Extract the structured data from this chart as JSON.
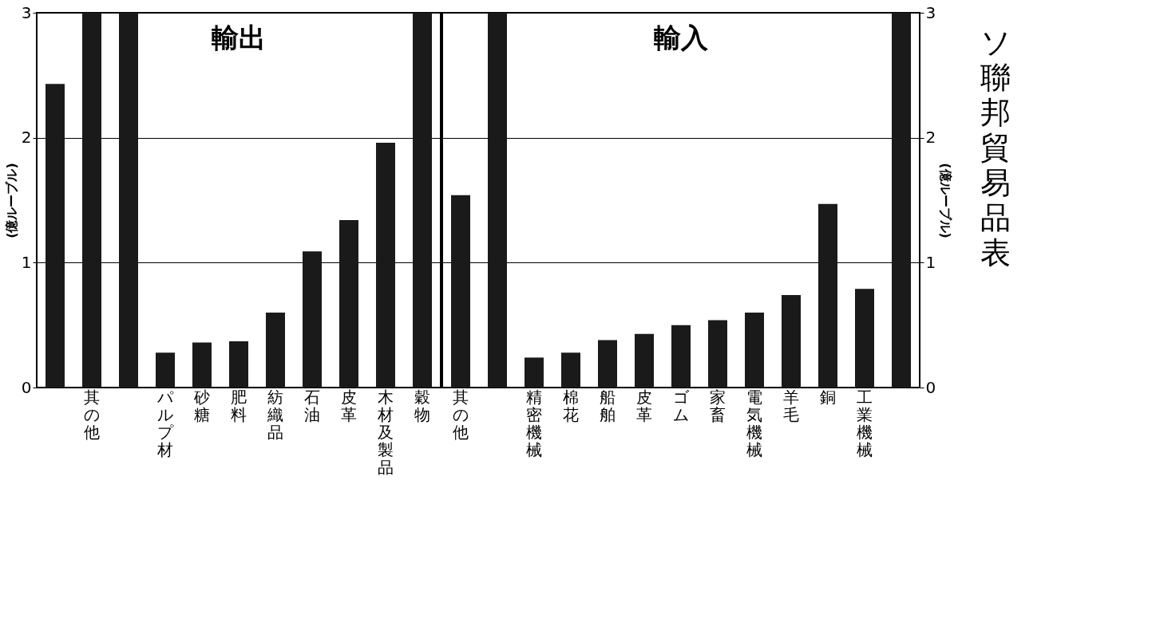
{
  "chart_data": [
    {
      "type": "bar",
      "title": "輸出",
      "ylabel": "(億ルーブル)",
      "color": "#1a1a1a",
      "grid": "y",
      "ylim": [
        0,
        3
      ],
      "yticks": [
        0,
        1,
        2,
        3
      ],
      "categories": [
        null,
        "其の他",
        null,
        "パルプ材",
        "砂糖",
        "肥料",
        "紡織品",
        "石油",
        "皮革",
        "木材及製品",
        "穀物"
      ],
      "values": [
        2.43,
        3,
        3,
        0.28,
        0.36,
        0.37,
        0.6,
        1.09,
        1.34,
        1.96,
        3
      ]
    },
    {
      "type": "bar",
      "title": "輸入",
      "ylabel": "(億ルーブル)",
      "color": "#1a1a1a",
      "grid": "y",
      "ylim": [
        0,
        3
      ],
      "yticks": [
        0,
        1,
        2,
        3
      ],
      "categories": [
        "其の他",
        null,
        "精密機械",
        "棉花",
        "船舶",
        "皮革",
        "ゴム",
        "家畜",
        "電気機械",
        "羊毛",
        "銅",
        "工業機械",
        null
      ],
      "values": [
        1.54,
        3,
        0.24,
        0.28,
        0.38,
        0.43,
        0.5,
        0.54,
        0.6,
        0.74,
        1.47,
        0.79,
        3
      ],
      "annotations": [
        "ソ聯邦貿易品表"
      ]
    }
  ]
}
